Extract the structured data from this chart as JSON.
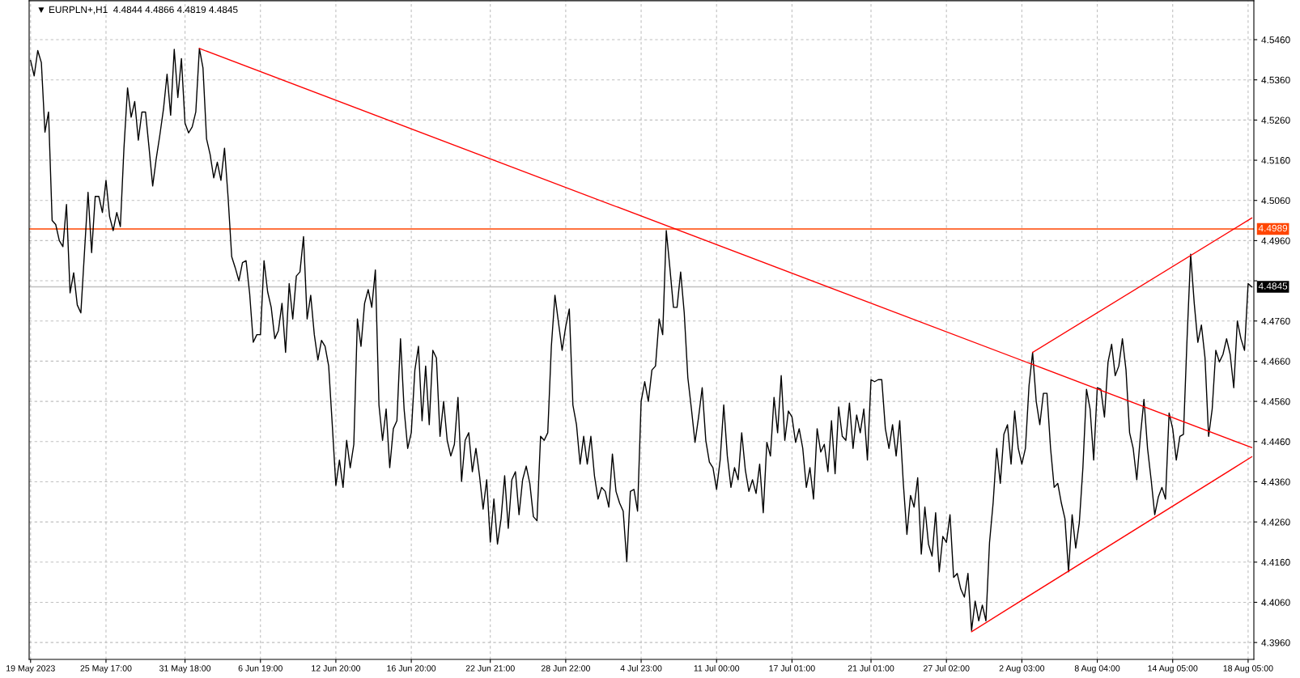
{
  "chart_data": {
    "type": "line",
    "title": "▼ EURPLN+,H1  4.4844 4.4866 4.4819 4.4845",
    "categories": [
      "19 May 2023",
      null,
      null,
      null,
      null,
      null,
      null,
      null,
      null,
      null,
      null,
      null,
      null,
      null,
      null,
      null,
      null,
      null,
      null,
      null,
      null,
      "25 May 17:00",
      null,
      null,
      null,
      null,
      null,
      null,
      null,
      null,
      null,
      null,
      null,
      null,
      null,
      null,
      null,
      null,
      null,
      null,
      null,
      null,
      null,
      "31 May 18:00",
      null,
      null,
      null,
      null,
      null,
      null,
      null,
      null,
      null,
      null,
      null,
      null,
      null,
      null,
      null,
      null,
      null,
      null,
      null,
      null,
      "6 Jun 19:00",
      null,
      null,
      null,
      null,
      null,
      null,
      null,
      null,
      null,
      null,
      null,
      null,
      null,
      null,
      null,
      null,
      null,
      null,
      null,
      null,
      "12 Jun 20:00",
      null,
      null,
      null,
      null,
      null,
      null,
      null,
      null,
      null,
      null,
      null,
      null,
      null,
      null,
      null,
      null,
      null,
      null,
      null,
      null,
      "16 Jun 20:00",
      null,
      null,
      null,
      null,
      null,
      null,
      null,
      null,
      null,
      null,
      null,
      null,
      null,
      null,
      null,
      null,
      null,
      null,
      null,
      null,
      null,
      "22 Jun 21:00",
      null,
      null,
      null,
      null,
      null,
      null,
      null,
      null,
      null,
      null,
      null,
      null,
      null,
      null,
      null,
      null,
      null,
      null,
      null,
      null,
      "28 Jun 22:00",
      null,
      null,
      null,
      null,
      null,
      null,
      null,
      null,
      null,
      null,
      null,
      null,
      null,
      null,
      null,
      null,
      null,
      null,
      null,
      null,
      "4 Jul 23:00",
      null,
      null,
      null,
      null,
      null,
      null,
      null,
      null,
      null,
      null,
      null,
      null,
      null,
      null,
      null,
      null,
      null,
      null,
      null,
      null,
      "11 Jul 00:00",
      null,
      null,
      null,
      null,
      null,
      null,
      null,
      null,
      null,
      null,
      null,
      null,
      null,
      null,
      null,
      null,
      null,
      null,
      null,
      null,
      "17 Jul 01:00",
      null,
      null,
      null,
      null,
      null,
      null,
      null,
      null,
      null,
      null,
      null,
      null,
      null,
      null,
      null,
      null,
      null,
      null,
      null,
      null,
      null,
      "21 Jul 01:00",
      null,
      null,
      null,
      null,
      null,
      null,
      null,
      null,
      null,
      null,
      null,
      null,
      null,
      null,
      null,
      null,
      null,
      null,
      null,
      null,
      "27 Jul 02:00",
      null,
      null,
      null,
      null,
      null,
      null,
      null,
      null,
      null,
      null,
      null,
      null,
      null,
      null,
      null,
      null,
      null,
      null,
      null,
      null,
      "2 Aug 03:00",
      null,
      null,
      null,
      null,
      null,
      null,
      null,
      null,
      null,
      null,
      null,
      null,
      null,
      null,
      null,
      null,
      null,
      null,
      null,
      null,
      "8 Aug 04:00",
      null,
      null,
      null,
      null,
      null,
      null,
      null,
      null,
      null,
      null,
      null,
      null,
      null,
      null,
      null,
      null,
      null,
      null,
      null,
      null,
      "14 Aug 05:00",
      null,
      null,
      null,
      null,
      null,
      null,
      null,
      null,
      null,
      null,
      null,
      null,
      null,
      null,
      null,
      null,
      null,
      null,
      null,
      null,
      "18 Aug 05:00",
      null
    ],
    "ylim": [
      4.3918,
      4.5557
    ],
    "yticks": [
      {
        "value": 4.396,
        "label": "4.3960"
      },
      {
        "value": 4.406,
        "label": "4.4060"
      },
      {
        "value": 4.416,
        "label": "4.4160"
      },
      {
        "value": 4.426,
        "label": "4.4260"
      },
      {
        "value": 4.436,
        "label": "4.4360"
      },
      {
        "value": 4.446,
        "label": "4.4460"
      },
      {
        "value": 4.456,
        "label": "4.4560"
      },
      {
        "value": 4.466,
        "label": "4.4660"
      },
      {
        "value": 4.476,
        "label": "4.4760"
      },
      {
        "value": 4.486,
        "label": null
      },
      {
        "value": 4.496,
        "label": "4.4960"
      },
      {
        "value": 4.506,
        "label": "4.5060"
      },
      {
        "value": 4.516,
        "label": "4.5160"
      },
      {
        "value": 4.526,
        "label": "4.5260"
      },
      {
        "value": 4.536,
        "label": "4.5360"
      },
      {
        "value": 4.546,
        "label": "4.5460"
      }
    ],
    "grid": true,
    "line_style": "solid",
    "marker": "none",
    "ref_lines": [
      {
        "axis": "y",
        "value": 4.4989,
        "label": "4.4989",
        "color": "#ff4500"
      },
      {
        "axis": "y",
        "value": 4.4845,
        "label": "4.4845",
        "color": "#c0c0c0"
      }
    ],
    "series": [
      {
        "color": "#000000",
        "values": [
          4.5408,
          4.537,
          4.5433,
          4.5403,
          4.523,
          4.528,
          4.501,
          4.5,
          4.496,
          4.4945,
          4.505,
          4.483,
          4.488,
          4.48,
          4.478,
          4.493,
          4.508,
          4.493,
          4.507,
          4.507,
          4.503,
          4.511,
          4.502,
          4.4985,
          4.503,
          4.4995,
          4.519,
          4.534,
          4.5267,
          4.5306,
          4.521,
          4.528,
          4.528,
          4.519,
          4.5096,
          4.5165,
          4.5223,
          4.5287,
          4.5374,
          4.5272,
          4.5436,
          4.5316,
          4.5413,
          4.5252,
          4.5228,
          4.5243,
          4.528,
          4.5438,
          4.539,
          4.5213,
          4.5174,
          4.5116,
          4.5155,
          4.511,
          4.519,
          4.5067,
          4.492,
          4.4892,
          4.486,
          4.4905,
          4.491,
          4.4828,
          4.4707,
          4.4726,
          4.4726,
          4.491,
          4.4833,
          4.4794,
          4.4716,
          4.4736,
          4.4804,
          4.4682,
          4.4853,
          4.4765,
          4.4872,
          4.4882,
          4.497,
          4.4765,
          4.4824,
          4.4726,
          4.4663,
          4.4712,
          4.4697,
          4.4648,
          4.4502,
          4.4351,
          4.4414,
          4.4346,
          4.4463,
          4.4395,
          4.4453,
          4.4765,
          4.4697,
          4.4804,
          4.4838,
          4.4794,
          4.4887,
          4.4551,
          4.4463,
          4.4541,
          4.4395,
          4.4492,
          4.4512,
          4.4716,
          4.4541,
          4.4443,
          4.4482,
          4.4638,
          4.4697,
          4.4512,
          4.4648,
          4.4502,
          4.4687,
          4.4668,
          4.4473,
          4.456,
          4.4463,
          4.4424,
          4.4453,
          4.457,
          4.4361,
          4.4463,
          4.4482,
          4.4385,
          4.4443,
          4.4375,
          4.4292,
          4.4365,
          4.421,
          4.4317,
          4.4205,
          4.4268,
          4.4375,
          4.4244,
          4.4365,
          4.4385,
          4.4278,
          4.4365,
          4.4399,
          4.4356,
          4.4273,
          4.4263,
          4.4473,
          4.4463,
          4.4482,
          4.4697,
          4.4824,
          4.4755,
          4.4687,
          4.4746,
          4.479,
          4.4551,
          4.4502,
          4.4404,
          4.4473,
          4.4404,
          4.4473,
          4.4375,
          4.4317,
          4.4346,
          4.4336,
          4.4297,
          4.4429,
          4.4336,
          4.4307,
          4.4287,
          4.4161,
          4.4336,
          4.4341,
          4.4287,
          4.456,
          4.4609,
          4.456,
          4.4638,
          4.4648,
          4.4765,
          4.4726,
          4.4985,
          4.4892,
          4.4794,
          4.4794,
          4.4882,
          4.478,
          4.4619,
          4.4541,
          4.4458,
          4.4521,
          4.4594,
          4.4463,
          4.4409,
          4.4395,
          4.4341,
          4.4414,
          4.4551,
          4.4424,
          4.4346,
          4.4395,
          4.4365,
          4.4482,
          4.439,
          4.4336,
          4.4365,
          4.4331,
          4.4404,
          4.4283,
          4.4458,
          4.4424,
          4.457,
          4.4482,
          4.4624,
          4.4463,
          4.4536,
          4.4521,
          4.4458,
          4.4492,
          4.4443,
          4.4346,
          4.4395,
          4.4317,
          4.4492,
          4.4434,
          4.4453,
          4.4385,
          4.4512,
          4.438,
          4.4546,
          4.4473,
          4.4463,
          4.4556,
          4.4443,
          4.4526,
          4.4482,
          4.4541,
          4.4414,
          4.4614,
          4.4609,
          4.4614,
          4.4614,
          4.4492,
          4.4443,
          4.4502,
          4.4424,
          4.4512,
          4.4356,
          4.4229,
          4.4326,
          4.4297,
          4.437,
          4.418,
          4.4297,
          4.4205,
          4.4175,
          4.4283,
          4.4136,
          4.4224,
          4.4209,
          4.4278,
          4.4122,
          4.4132,
          4.4093,
          4.4073,
          4.4132,
          4.399,
          4.4063,
          4.4014,
          4.4053,
          4.4014,
          4.4209,
          4.4307,
          4.4443,
          4.4356,
          4.4478,
          4.4502,
          4.4404,
          4.4536,
          4.4443,
          4.4404,
          4.4443,
          4.4599,
          4.4682,
          4.456,
          4.4502,
          4.458,
          4.458,
          4.4443,
          4.4346,
          4.4356,
          4.4307,
          4.4268,
          4.4136,
          4.4278,
          4.4195,
          4.4258,
          4.4395,
          4.459,
          4.4541,
          4.4414,
          4.4594,
          4.459,
          4.4521,
          4.4658,
          4.4702,
          4.4624,
          4.4648,
          4.4716,
          4.4638,
          4.4482,
          4.4443,
          4.4365,
          4.4473,
          4.4565,
          4.4443,
          4.4365,
          4.4278,
          4.4322,
          4.4346,
          4.4317,
          4.4531,
          4.4492,
          4.4414,
          4.4473,
          4.4478,
          4.4716,
          4.4926,
          4.4804,
          4.4707,
          4.475,
          4.4668,
          4.4473,
          4.4541,
          4.4687,
          4.4658,
          4.4677,
          4.4716,
          4.4677,
          4.4594,
          4.476,
          4.4716,
          4.4687,
          4.4853,
          4.4845
        ]
      },
      {
        "type": "line",
        "color": "#ff0000",
        "values": [
          null,
          null,
          null,
          null,
          null,
          null,
          null,
          null,
          null,
          null,
          null,
          null,
          null,
          null,
          null,
          null,
          null,
          null,
          null,
          null,
          null,
          null,
          null,
          null,
          null,
          null,
          null,
          null,
          null,
          null,
          null,
          null,
          null,
          null,
          null,
          null,
          null,
          null,
          null,
          null,
          null,
          null,
          null,
          null,
          null,
          null,
          null,
          4.5438,
          null,
          null,
          null,
          null,
          null,
          null,
          null,
          null,
          null,
          null,
          null,
          null,
          null,
          null,
          null,
          null,
          null,
          null,
          null,
          null,
          null,
          null,
          null,
          null,
          null,
          null,
          null,
          null,
          null,
          null,
          null,
          null,
          null,
          null,
          null,
          null,
          null,
          null,
          null,
          null,
          null,
          null,
          null,
          null,
          null,
          null,
          null,
          null,
          null,
          null,
          null,
          null,
          null,
          null,
          null,
          null,
          null,
          null,
          null,
          null,
          null,
          null,
          null,
          null,
          null,
          null,
          null,
          null,
          null,
          null,
          null,
          null,
          null,
          null,
          null,
          null,
          null,
          null,
          null,
          null,
          null,
          null,
          null,
          null,
          null,
          null,
          null,
          null,
          null,
          null,
          null,
          null,
          null,
          null,
          null,
          null,
          null,
          null,
          null,
          null,
          null,
          null,
          null,
          null,
          null,
          null,
          null,
          null,
          null,
          null,
          null,
          null,
          null,
          null,
          null,
          null,
          null,
          null,
          null,
          null,
          null,
          null,
          null,
          null,
          null,
          null,
          null,
          null,
          null,
          null,
          null,
          null,
          null,
          null,
          null,
          null,
          null,
          null,
          null,
          null,
          null,
          null,
          null,
          null,
          null,
          null,
          null,
          null,
          null,
          null,
          null,
          null,
          null,
          null,
          null,
          null,
          null,
          null,
          null,
          null,
          null,
          null,
          null,
          null,
          null,
          null,
          null,
          null,
          null,
          null,
          null,
          null,
          null,
          null,
          null,
          null,
          null,
          null,
          null,
          null,
          null,
          null,
          null,
          null,
          null,
          null,
          null,
          null,
          null,
          null,
          null,
          null,
          null,
          null,
          null,
          null,
          null,
          null,
          null,
          null,
          null,
          null,
          null,
          null,
          null,
          null,
          null,
          null,
          null,
          null,
          null,
          null,
          null,
          null,
          null,
          null,
          null,
          null,
          null,
          null,
          null,
          null,
          null,
          null,
          null,
          null,
          null,
          null,
          null,
          null,
          null,
          null,
          null,
          null,
          null,
          null,
          null,
          null,
          null,
          null,
          null,
          null,
          null,
          null,
          null,
          null,
          null,
          null,
          null,
          null,
          null,
          null,
          null,
          null,
          null,
          null,
          null,
          null,
          null,
          null,
          null,
          null,
          null,
          null,
          null,
          null,
          null,
          null,
          null,
          null,
          null,
          null,
          null,
          null,
          null,
          null,
          null,
          null,
          null,
          null,
          null,
          null,
          null,
          null,
          null,
          null,
          null,
          null,
          null,
          null,
          null,
          null,
          4.4445
        ]
      },
      {
        "type": "line",
        "color": "#ff0000",
        "values": [
          null,
          null,
          null,
          null,
          null,
          null,
          null,
          null,
          null,
          null,
          null,
          null,
          null,
          null,
          null,
          null,
          null,
          null,
          null,
          null,
          null,
          null,
          null,
          null,
          null,
          null,
          null,
          null,
          null,
          null,
          null,
          null,
          null,
          null,
          null,
          null,
          null,
          null,
          null,
          null,
          null,
          null,
          null,
          null,
          null,
          null,
          null,
          null,
          null,
          null,
          null,
          null,
          null,
          null,
          null,
          null,
          null,
          null,
          null,
          null,
          null,
          null,
          null,
          null,
          null,
          null,
          null,
          null,
          null,
          null,
          null,
          null,
          null,
          null,
          null,
          null,
          null,
          null,
          null,
          null,
          null,
          null,
          null,
          null,
          null,
          null,
          null,
          null,
          null,
          null,
          null,
          null,
          null,
          null,
          null,
          null,
          null,
          null,
          null,
          null,
          null,
          null,
          null,
          null,
          null,
          null,
          null,
          null,
          null,
          null,
          null,
          null,
          null,
          null,
          null,
          null,
          null,
          null,
          null,
          null,
          null,
          null,
          null,
          null,
          null,
          null,
          null,
          null,
          null,
          null,
          null,
          null,
          null,
          null,
          null,
          null,
          null,
          null,
          null,
          null,
          null,
          null,
          null,
          null,
          null,
          null,
          null,
          null,
          null,
          null,
          null,
          null,
          null,
          null,
          null,
          null,
          null,
          null,
          null,
          null,
          null,
          null,
          null,
          null,
          null,
          null,
          null,
          null,
          null,
          null,
          null,
          null,
          null,
          null,
          null,
          null,
          null,
          null,
          null,
          null,
          null,
          null,
          null,
          null,
          null,
          null,
          null,
          null,
          null,
          null,
          null,
          null,
          null,
          null,
          null,
          null,
          null,
          null,
          null,
          null,
          null,
          null,
          null,
          null,
          null,
          null,
          null,
          null,
          null,
          null,
          null,
          null,
          null,
          null,
          null,
          null,
          null,
          null,
          null,
          null,
          null,
          null,
          null,
          null,
          null,
          null,
          null,
          null,
          null,
          null,
          null,
          null,
          null,
          null,
          null,
          null,
          null,
          null,
          null,
          null,
          null,
          null,
          null,
          null,
          null,
          null,
          null,
          null,
          null,
          null,
          null,
          null,
          null,
          null,
          null,
          null,
          null,
          null,
          null,
          null,
          null,
          null,
          4.3987,
          null,
          null,
          null,
          null,
          null,
          null,
          null,
          null,
          null,
          null,
          null,
          null,
          null,
          null,
          null,
          null,
          null,
          null,
          null,
          null,
          null,
          null,
          null,
          null,
          null,
          null,
          null,
          null,
          null,
          null,
          null,
          null,
          null,
          null,
          null,
          null,
          null,
          null,
          null,
          null,
          null,
          null,
          null,
          null,
          null,
          null,
          null,
          null,
          null,
          null,
          null,
          null,
          null,
          null,
          null,
          null,
          null,
          null,
          null,
          null,
          null,
          null,
          null,
          null,
          null,
          null,
          null,
          null,
          null,
          null,
          null,
          null,
          null,
          null,
          null,
          null,
          null,
          4.4422
        ]
      },
      {
        "type": "line",
        "color": "#ff0000",
        "values": [
          null,
          null,
          null,
          null,
          null,
          null,
          null,
          null,
          null,
          null,
          null,
          null,
          null,
          null,
          null,
          null,
          null,
          null,
          null,
          null,
          null,
          null,
          null,
          null,
          null,
          null,
          null,
          null,
          null,
          null,
          null,
          null,
          null,
          null,
          null,
          null,
          null,
          null,
          null,
          null,
          null,
          null,
          null,
          null,
          null,
          null,
          null,
          null,
          null,
          null,
          null,
          null,
          null,
          null,
          null,
          null,
          null,
          null,
          null,
          null,
          null,
          null,
          null,
          null,
          null,
          null,
          null,
          null,
          null,
          null,
          null,
          null,
          null,
          null,
          null,
          null,
          null,
          null,
          null,
          null,
          null,
          null,
          null,
          null,
          null,
          null,
          null,
          null,
          null,
          null,
          null,
          null,
          null,
          null,
          null,
          null,
          null,
          null,
          null,
          null,
          null,
          null,
          null,
          null,
          null,
          null,
          null,
          null,
          null,
          null,
          null,
          null,
          null,
          null,
          null,
          null,
          null,
          null,
          null,
          null,
          null,
          null,
          null,
          null,
          null,
          null,
          null,
          null,
          null,
          null,
          null,
          null,
          null,
          null,
          null,
          null,
          null,
          null,
          null,
          null,
          null,
          null,
          null,
          null,
          null,
          null,
          null,
          null,
          null,
          null,
          null,
          null,
          null,
          null,
          null,
          null,
          null,
          null,
          null,
          null,
          null,
          null,
          null,
          null,
          null,
          null,
          null,
          null,
          null,
          null,
          null,
          null,
          null,
          null,
          null,
          null,
          null,
          null,
          null,
          null,
          null,
          null,
          null,
          null,
          null,
          null,
          null,
          null,
          null,
          null,
          null,
          null,
          null,
          null,
          null,
          null,
          null,
          null,
          null,
          null,
          null,
          null,
          null,
          null,
          null,
          null,
          null,
          null,
          null,
          null,
          null,
          null,
          null,
          null,
          null,
          null,
          null,
          null,
          null,
          null,
          null,
          null,
          null,
          null,
          null,
          null,
          null,
          null,
          null,
          null,
          null,
          null,
          null,
          null,
          null,
          null,
          null,
          null,
          null,
          null,
          null,
          null,
          null,
          null,
          null,
          null,
          null,
          null,
          null,
          null,
          null,
          null,
          null,
          null,
          null,
          null,
          null,
          null,
          null,
          null,
          null,
          null,
          null,
          null,
          null,
          null,
          null,
          null,
          null,
          null,
          null,
          null,
          null,
          null,
          null,
          null,
          null,
          null,
          null,
          4.4682,
          null,
          null,
          null,
          null,
          null,
          null,
          null,
          null,
          null,
          null,
          null,
          null,
          null,
          null,
          null,
          null,
          null,
          null,
          null,
          null,
          null,
          null,
          null,
          null,
          null,
          null,
          null,
          null,
          null,
          null,
          null,
          null,
          null,
          null,
          null,
          null,
          null,
          null,
          null,
          null,
          null,
          null,
          null,
          null,
          null,
          null,
          null,
          null,
          null,
          null,
          null,
          null,
          null,
          null,
          null,
          null,
          null,
          null,
          null,
          null,
          4.5016
        ]
      }
    ]
  }
}
